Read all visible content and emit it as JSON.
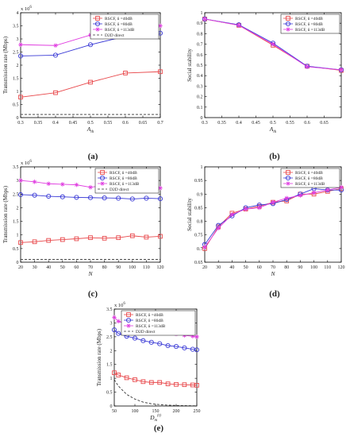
{
  "colors": {
    "s40": "#e8474a",
    "s80": "#3a3ad6",
    "s113": "#e03de0",
    "d2d": "#333333"
  },
  "chart_data": [
    {
      "type": "line",
      "panel_label": "(a)",
      "xlabel": "A",
      "xlabel_sub": "th",
      "ylabel": "Transmission rate (Mbps)",
      "yexp": "x 10",
      "yexp_pow": "6",
      "xlim": [
        0.3,
        0.7
      ],
      "ylim": [
        0,
        4
      ],
      "xticks": [
        "0.3",
        "0.35",
        "0.4",
        "0.45",
        "0.5",
        "0.55",
        "0.6",
        "0.65",
        "0.7"
      ],
      "yticks": [
        "0",
        "0.5",
        "1",
        "1.5",
        "2",
        "2.5",
        "3",
        "3.5",
        "4"
      ],
      "legend": "top-right",
      "x": [
        0.3,
        0.4,
        0.5,
        0.6,
        0.7
      ],
      "series": [
        {
          "name": "RSCF, δ =40dB",
          "values": [
            0.78,
            0.95,
            1.35,
            1.7,
            1.75
          ]
        },
        {
          "name": "RSCF, δ =80dB",
          "values": [
            2.35,
            2.38,
            2.78,
            3.1,
            3.22
          ]
        },
        {
          "name": "RSCF, δ =113dB",
          "values": [
            2.78,
            2.75,
            3.15,
            3.48,
            3.5
          ]
        },
        {
          "name": "D2D direct",
          "values": [
            0.12,
            0.12,
            0.12,
            0.12,
            0.12
          ]
        }
      ]
    },
    {
      "type": "line",
      "panel_label": "(b)",
      "xlabel": "A",
      "xlabel_sub": "th",
      "ylabel": "Social stability",
      "xlim": [
        0.3,
        0.7
      ],
      "ylim": [
        0,
        1
      ],
      "xticks": [
        "0.3",
        "0.35",
        "0.4",
        "0.45",
        "0.5",
        "0.55",
        "0.6",
        "0.65"
      ],
      "yticks": [
        "0",
        "0.1",
        "0.2",
        "0.3",
        "0.4",
        "0.5",
        "0.6",
        "0.7",
        "0.8",
        "0.9",
        "1"
      ],
      "legend": "top-right",
      "x": [
        0.3,
        0.4,
        0.5,
        0.6,
        0.7
      ],
      "series": [
        {
          "name": "RSCF, δ =40dB",
          "values": [
            0.94,
            0.88,
            0.69,
            0.49,
            0.45
          ]
        },
        {
          "name": "RSCF, δ =80dB",
          "values": [
            0.94,
            0.885,
            0.71,
            0.49,
            0.455
          ]
        },
        {
          "name": "RSCF, δ =113dB",
          "values": [
            0.94,
            0.88,
            0.7,
            0.485,
            0.455
          ]
        }
      ]
    },
    {
      "type": "line",
      "panel_label": "(c)",
      "xlabel": "N",
      "ylabel": "Transmission rate (Mbps)",
      "yexp": "x 10",
      "yexp_pow": "6",
      "xlim": [
        20,
        120
      ],
      "ylim": [
        0,
        3.5
      ],
      "xticks": [
        "20",
        "30",
        "40",
        "50",
        "60",
        "70",
        "80",
        "90",
        "100",
        "110",
        "120"
      ],
      "yticks": [
        "0",
        "0.5",
        "1",
        "1.5",
        "2",
        "2.5",
        "3",
        "3.5"
      ],
      "legend": "top-right",
      "x": [
        20,
        30,
        40,
        50,
        60,
        70,
        80,
        90,
        100,
        110,
        120
      ],
      "series": [
        {
          "name": "RSCF, δ =40dB",
          "values": [
            0.72,
            0.75,
            0.8,
            0.83,
            0.86,
            0.9,
            0.88,
            0.9,
            0.97,
            0.92,
            0.95
          ]
        },
        {
          "name": "RSCF, δ =80dB",
          "values": [
            2.48,
            2.46,
            2.42,
            2.4,
            2.38,
            2.37,
            2.36,
            2.35,
            2.32,
            2.35,
            2.33
          ]
        },
        {
          "name": "RSCF, δ =113dB",
          "values": [
            3.0,
            2.95,
            2.88,
            2.86,
            2.84,
            2.75,
            2.82,
            2.82,
            2.75,
            2.75,
            2.72
          ]
        },
        {
          "name": "D2D direct",
          "values": [
            0.1,
            0.1,
            0.1,
            0.1,
            0.1,
            0.1,
            0.1,
            0.1,
            0.1,
            0.1,
            0.1
          ]
        }
      ]
    },
    {
      "type": "line",
      "panel_label": "(d)",
      "xlabel": "N",
      "ylabel": "Social stability",
      "xlim": [
        20,
        120
      ],
      "ylim": [
        0.65,
        1
      ],
      "xticks": [
        "20",
        "30",
        "40",
        "50",
        "60",
        "70",
        "80",
        "90",
        "100",
        "110",
        "120"
      ],
      "yticks": [
        "0.65",
        "0.7",
        "0.75",
        "0.8",
        "0.85",
        "0.9",
        "0.95",
        "1"
      ],
      "legend": "top-right",
      "x": [
        20,
        30,
        40,
        50,
        60,
        70,
        80,
        90,
        100,
        110,
        120
      ],
      "series": [
        {
          "name": "RSCF, δ =40dB",
          "values": [
            0.7,
            0.78,
            0.83,
            0.845,
            0.855,
            0.87,
            0.875,
            0.9,
            0.9,
            0.91,
            0.92
          ]
        },
        {
          "name": "RSCF, δ =80dB",
          "values": [
            0.715,
            0.785,
            0.82,
            0.85,
            0.86,
            0.865,
            0.88,
            0.9,
            0.92,
            0.915,
            0.915
          ]
        },
        {
          "name": "RSCF, δ =113dB",
          "values": [
            0.705,
            0.775,
            0.825,
            0.845,
            0.85,
            0.87,
            0.885,
            0.895,
            0.905,
            0.915,
            0.925
          ]
        }
      ]
    },
    {
      "type": "line",
      "panel_label": "(e)",
      "xlabel": "D",
      "xlabel_sub": "m",
      "xlabel_sup": "(t)",
      "ylabel": "Transmission rate (Mbps)",
      "yexp": "x 10",
      "yexp_pow": "6",
      "xlim": [
        50,
        250
      ],
      "ylim": [
        0,
        3.5
      ],
      "xticks": [
        "50",
        "100",
        "150",
        "200",
        "250"
      ],
      "yticks": [
        "0",
        "0.5",
        "1",
        "1.5",
        "2",
        "2.5",
        "3",
        "3.5"
      ],
      "legend": "top-right",
      "x": [
        50,
        60,
        80,
        100,
        120,
        140,
        160,
        180,
        200,
        220,
        240,
        250
      ],
      "series": [
        {
          "name": "RSCF, δ =40dB",
          "values": [
            1.2,
            1.12,
            1.02,
            0.95,
            0.88,
            0.85,
            0.85,
            0.8,
            0.78,
            0.77,
            0.76,
            0.75
          ]
        },
        {
          "name": "RSCF, δ =80dB",
          "values": [
            2.75,
            2.62,
            2.52,
            2.45,
            2.36,
            2.3,
            2.25,
            2.18,
            2.15,
            2.1,
            2.05,
            2.03
          ]
        },
        {
          "name": "RSCF, δ =113dB",
          "values": [
            3.2,
            3.06,
            2.97,
            2.9,
            2.82,
            2.76,
            2.7,
            2.65,
            2.6,
            2.55,
            2.52,
            2.5
          ]
        },
        {
          "name": "D2D direct",
          "values": [
            0.95,
            0.72,
            0.42,
            0.25,
            0.14,
            0.08,
            0.05,
            0.03,
            0.02,
            0.015,
            0.01,
            0.01
          ]
        }
      ]
    }
  ]
}
